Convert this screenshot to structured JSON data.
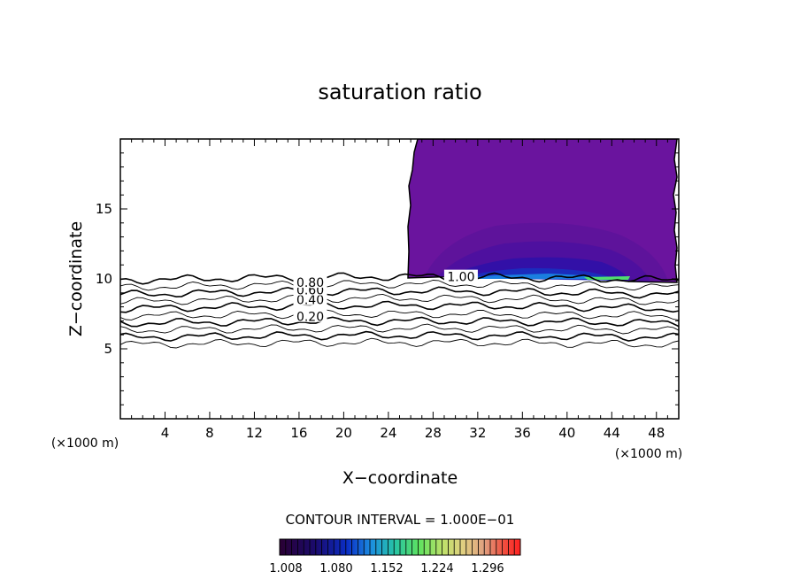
{
  "chart_data": {
    "type": "contour",
    "title": "saturation ratio",
    "xlabel": "X−coordinate",
    "ylabel": "Z−coordinate",
    "x_unit_left": "(×1000 m)",
    "x_unit_right": "(×1000 m)",
    "xlim": [
      0,
      50
    ],
    "ylim": [
      0,
      20
    ],
    "x_ticks": [
      4,
      8,
      12,
      16,
      20,
      24,
      28,
      32,
      36,
      40,
      44,
      48
    ],
    "y_ticks": [
      5,
      10,
      15
    ],
    "contour_levels": [
      0.1,
      0.2,
      0.3,
      0.4,
      0.5,
      0.6,
      0.7,
      0.8,
      0.9,
      1.0
    ],
    "contour_labels": [
      {
        "text": "0.20",
        "x": 17.0,
        "z": 7.3
      },
      {
        "text": "0.40",
        "x": 17.0,
        "z": 8.5
      },
      {
        "text": "0.60",
        "x": 17.0,
        "z": 9.2
      },
      {
        "text": "0.80",
        "x": 17.0,
        "z": 9.75
      },
      {
        "text": "1.00",
        "x": 30.5,
        "z": 10.15
      }
    ],
    "contour_interval_text": "CONTOUR INTERVAL = 1.000E−01",
    "colorbar": {
      "labels": [
        "1.008",
        "1.080",
        "1.152",
        "1.224",
        "1.296"
      ],
      "colors": [
        "#2a0033",
        "#1a0b6e",
        "#0b2ec6",
        "#1c8ee0",
        "#27c4a4",
        "#5fe25f",
        "#bfe06a",
        "#e0d080",
        "#e0a080",
        "#f05040",
        "#ff2020"
      ]
    },
    "supersat_region_color": "#6a149e"
  }
}
